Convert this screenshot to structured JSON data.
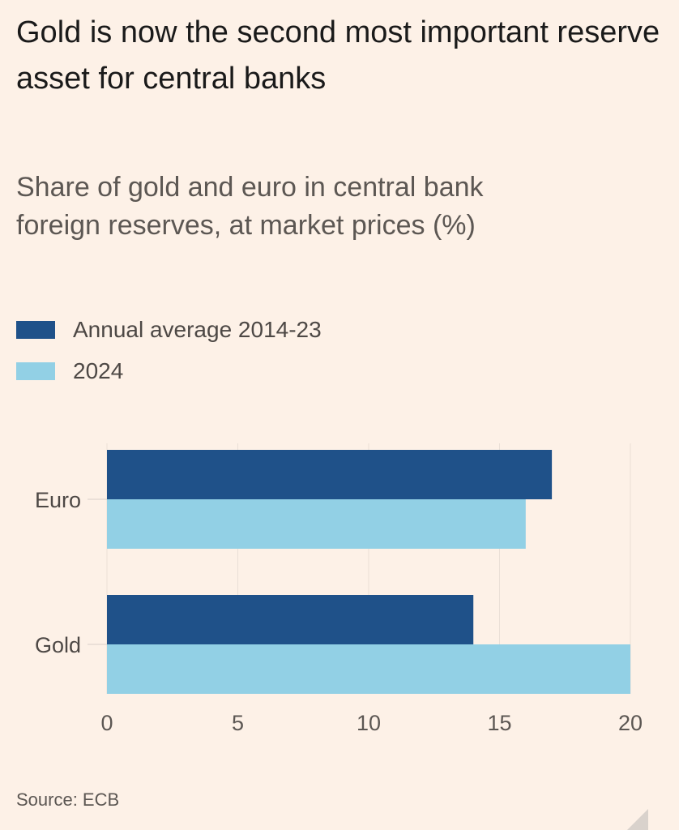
{
  "chart_data": {
    "type": "bar",
    "orientation": "horizontal",
    "title": "Gold is now the second most important reserve asset for central banks",
    "subtitle": "Share of gold and euro in central bank foreign reserves, at market prices (%)",
    "categories": [
      "Euro",
      "Gold"
    ],
    "series": [
      {
        "name": "Annual average 2014-23",
        "values": [
          17,
          14
        ],
        "color": "#1f5189"
      },
      {
        "name": "2024",
        "values": [
          16,
          20
        ],
        "color": "#92d0e5"
      }
    ],
    "xlim": [
      0,
      20
    ],
    "xticks": [
      0,
      5,
      10,
      15,
      20
    ],
    "grid": true,
    "legend": "top-left",
    "source": "Source: ECB"
  }
}
